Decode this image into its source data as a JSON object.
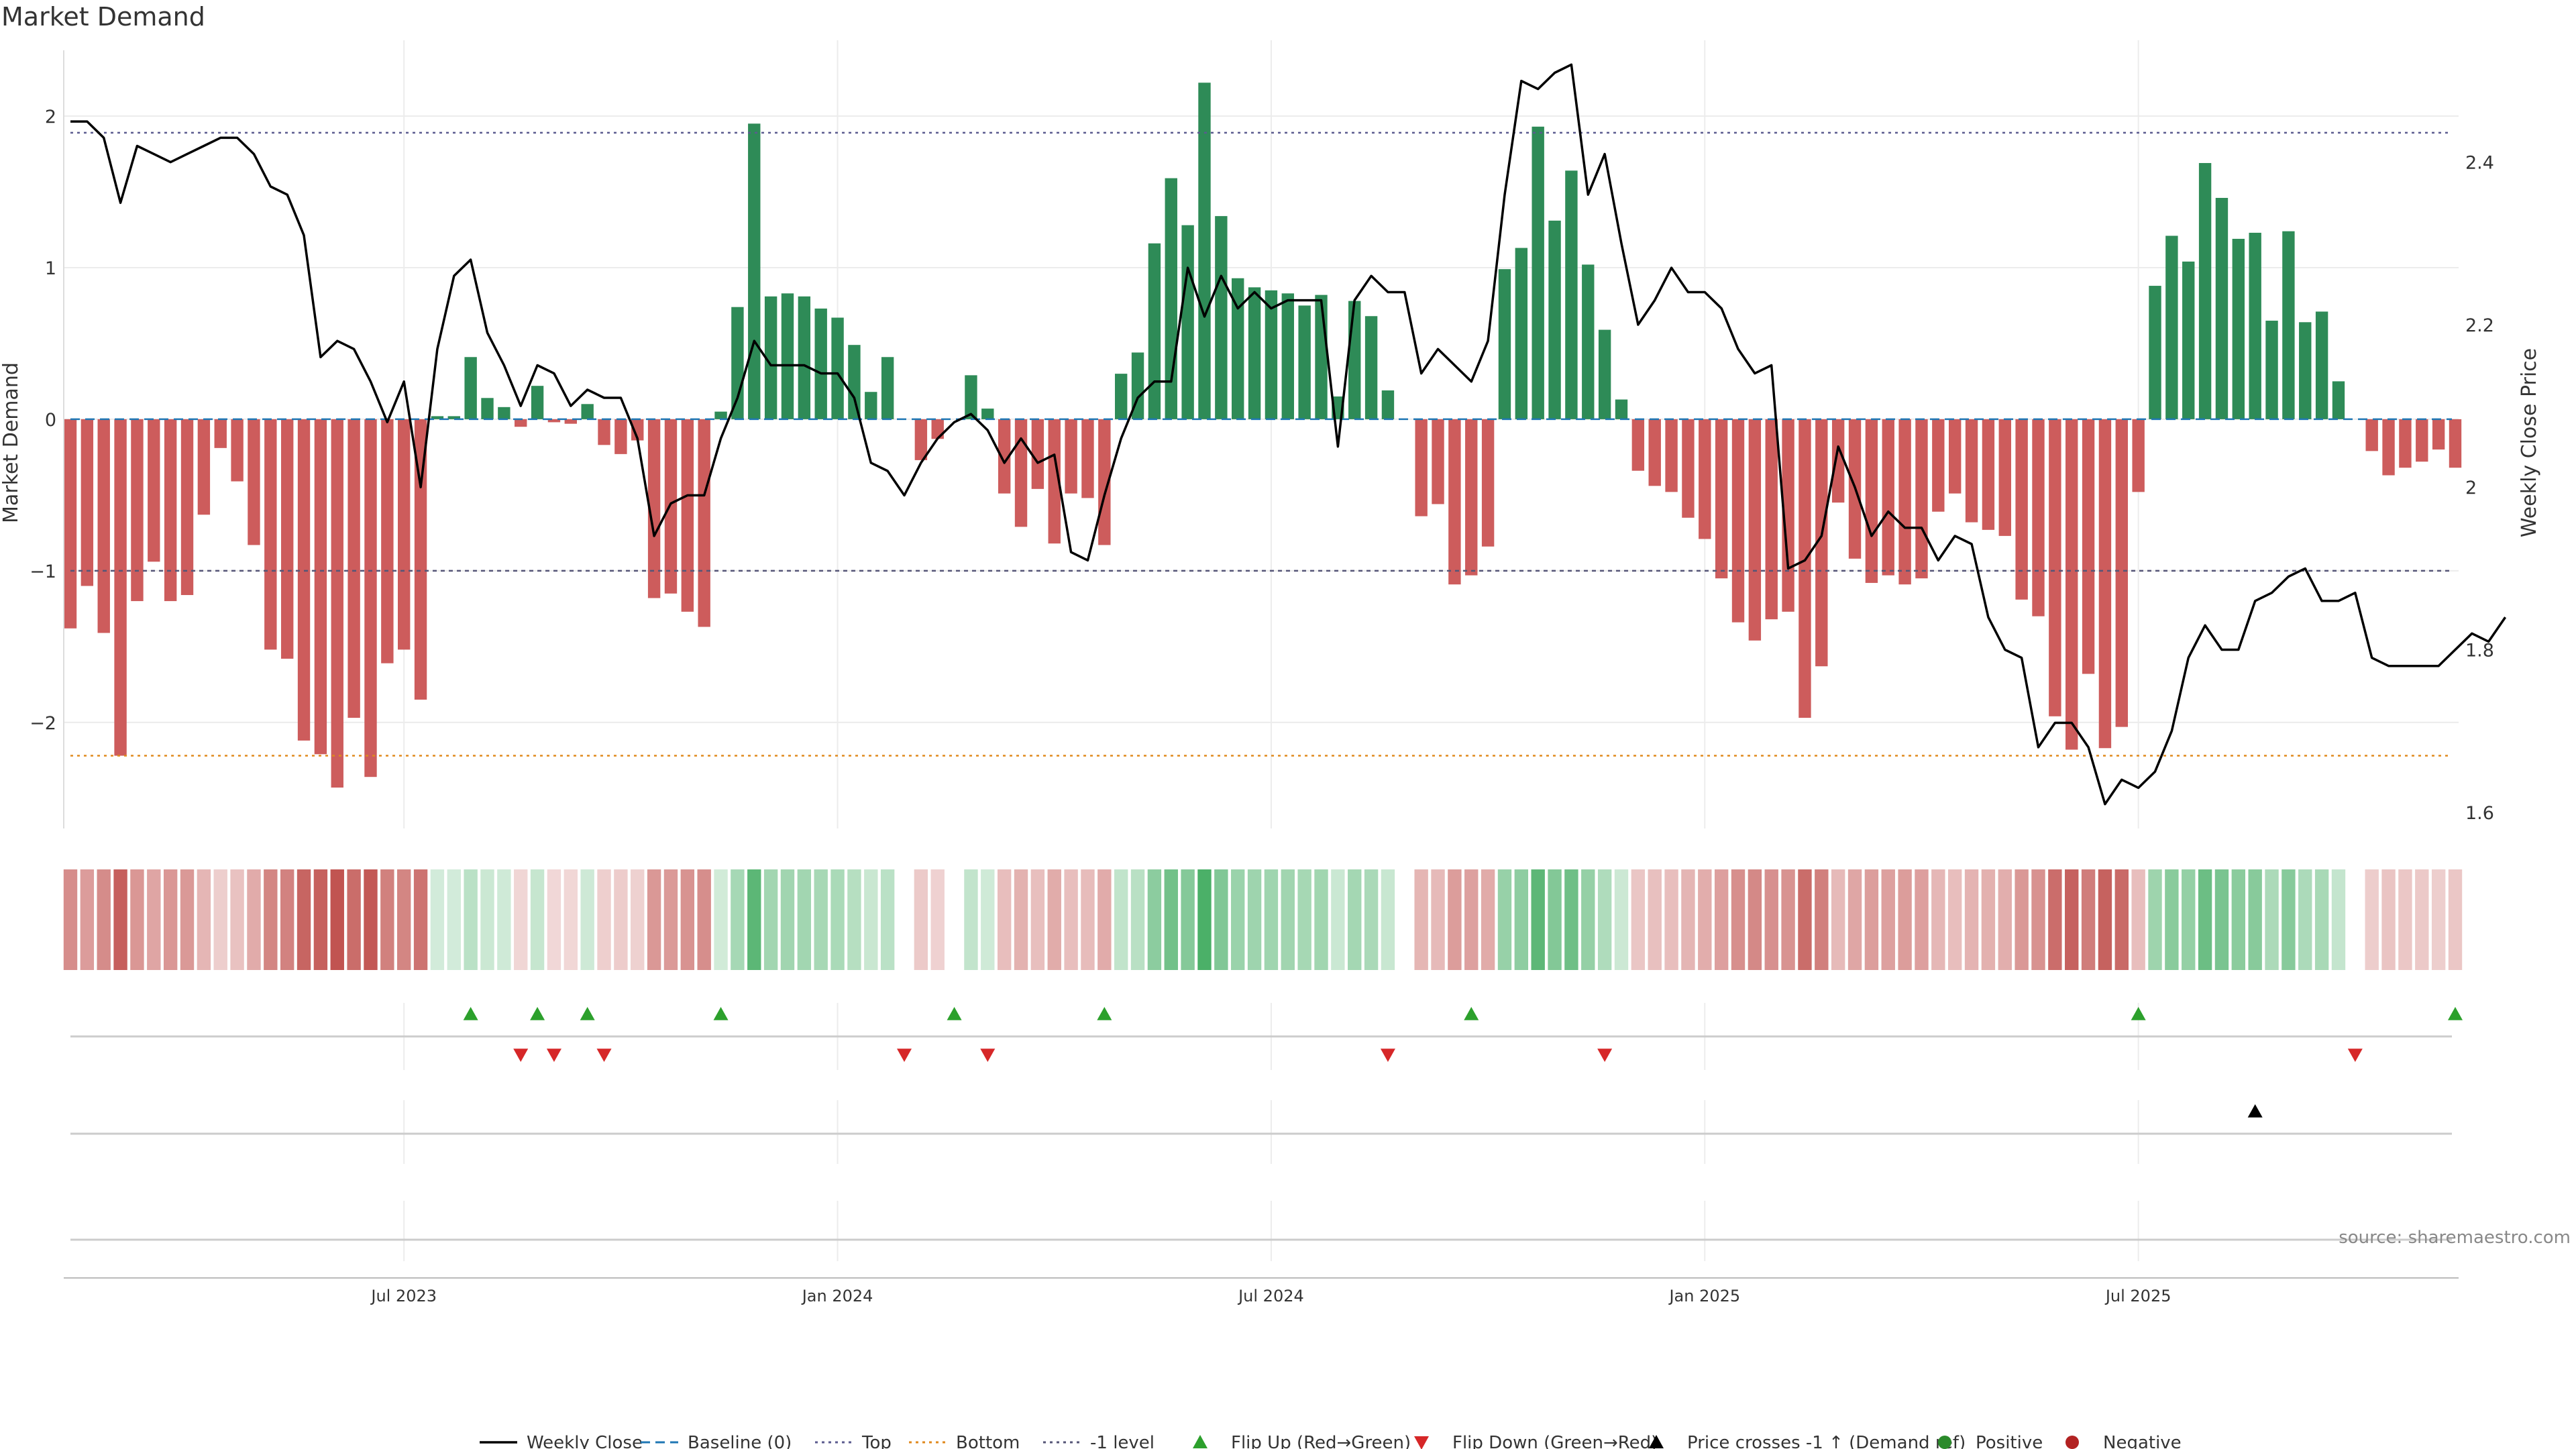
{
  "chart_data": {
    "type": "bar",
    "title": "Market Demand",
    "ylabel": "Market Demand",
    "ylabel_right": "Weekly Close Price",
    "source": "source: sharemaestro.com",
    "ylim": [
      -2.7,
      2.5
    ],
    "ylim_right": [
      1.58,
      2.55
    ],
    "yticks": [
      {
        "v": 2,
        "t": "2"
      },
      {
        "v": 1,
        "t": "1"
      },
      {
        "v": 0,
        "t": "0"
      },
      {
        "v": -1,
        "t": "−1"
      },
      {
        "v": -2,
        "t": "−2"
      }
    ],
    "yticks_right": [
      {
        "v": 2.4,
        "t": "2.4"
      },
      {
        "v": 2.2,
        "t": "2.2"
      },
      {
        "v": 2.0,
        "t": "2"
      },
      {
        "v": 1.8,
        "t": "1.8"
      },
      {
        "v": 1.6,
        "t": "1.6"
      }
    ],
    "xticks": [
      {
        "i": 20,
        "t": "Jul 2023"
      },
      {
        "i": 46,
        "t": "Jan 2024"
      },
      {
        "i": 72,
        "t": "Jul 2024"
      },
      {
        "i": 98,
        "t": "Jan 2025"
      },
      {
        "i": 124,
        "t": "Jul 2025"
      }
    ],
    "reference_lines": {
      "top": 1.89,
      "bottom": -2.22,
      "minus_one": -1,
      "baseline": 0
    },
    "demand": [
      -1.38,
      -1.1,
      -1.41,
      -2.22,
      -1.2,
      -0.94,
      -1.2,
      -1.16,
      -0.63,
      -0.19,
      -0.41,
      -0.83,
      -1.52,
      -1.58,
      -2.12,
      -2.21,
      -2.43,
      -1.97,
      -2.36,
      -1.61,
      -1.52,
      -1.85,
      0.02,
      0.02,
      0.41,
      0.14,
      0.08,
      -0.05,
      0.22,
      -0.02,
      -0.03,
      0.1,
      -0.17,
      -0.23,
      -0.14,
      -1.18,
      -1.15,
      -1.27,
      -1.37,
      0.05,
      0.74,
      1.95,
      0.81,
      0.83,
      0.81,
      0.73,
      0.67,
      0.49,
      0.18,
      0.41,
      0,
      -0.27,
      -0.13,
      0,
      0.29,
      0.07,
      -0.49,
      -0.71,
      -0.46,
      -0.82,
      -0.49,
      -0.52,
      -0.83,
      0.3,
      0.44,
      1.16,
      1.59,
      1.28,
      2.22,
      1.34,
      0.93,
      0.87,
      0.85,
      0.83,
      0.75,
      0.82,
      0.15,
      0.78,
      0.68,
      0.19,
      0,
      -0.64,
      -0.56,
      -1.09,
      -1.03,
      -0.84,
      0.99,
      1.13,
      1.93,
      1.31,
      1.64,
      1.02,
      0.59,
      0.13,
      -0.34,
      -0.44,
      -0.48,
      -0.65,
      -0.79,
      -1.05,
      -1.34,
      -1.46,
      -1.32,
      -1.27,
      -1.97,
      -1.63,
      -0.55,
      -0.92,
      -1.08,
      -1.03,
      -1.09,
      -1.05,
      -0.61,
      -0.49,
      -0.68,
      -0.73,
      -0.77,
      -1.19,
      -1.3,
      -1.96,
      -2.18,
      -1.68,
      -2.17,
      -2.03,
      -0.48,
      0.88,
      1.21,
      1.04,
      1.69,
      1.46,
      1.19,
      1.23,
      0.65,
      1.24,
      0.64,
      0.71,
      0.25,
      0,
      -0.21,
      -0.37,
      -0.32,
      -0.28,
      -0.2,
      -0.32
    ],
    "close": [
      2.45,
      2.45,
      2.43,
      2.35,
      2.42,
      2.41,
      2.4,
      2.41,
      2.42,
      2.43,
      2.43,
      2.41,
      2.37,
      2.36,
      2.31,
      2.16,
      2.18,
      2.17,
      2.13,
      2.08,
      2.13,
      2.0,
      2.17,
      2.26,
      2.28,
      2.19,
      2.15,
      2.1,
      2.15,
      2.14,
      2.1,
      2.12,
      2.11,
      2.11,
      2.06,
      1.94,
      1.98,
      1.99,
      1.99,
      2.06,
      2.11,
      2.18,
      2.15,
      2.15,
      2.15,
      2.14,
      2.14,
      2.11,
      2.03,
      2.02,
      1.99,
      2.03,
      2.06,
      2.08,
      2.09,
      2.07,
      2.03,
      2.06,
      2.03,
      2.04,
      1.92,
      1.91,
      1.99,
      2.06,
      2.11,
      2.13,
      2.13,
      2.27,
      2.21,
      2.26,
      2.22,
      2.24,
      2.22,
      2.23,
      2.23,
      2.23,
      2.05,
      2.23,
      2.26,
      2.24,
      2.24,
      2.14,
      2.17,
      2.15,
      2.13,
      2.18,
      2.36,
      2.5,
      2.49,
      2.51,
      2.52,
      2.36,
      2.41,
      2.3,
      2.2,
      2.23,
      2.27,
      2.24,
      2.24,
      2.22,
      2.17,
      2.14,
      2.15,
      1.9,
      1.91,
      1.94,
      2.05,
      2.0,
      1.94,
      1.97,
      1.95,
      1.95,
      1.91,
      1.94,
      1.93,
      1.84,
      1.8,
      1.79,
      1.68,
      1.71,
      1.71,
      1.68,
      1.61,
      1.64,
      1.63,
      1.65,
      1.7,
      1.79,
      1.83,
      1.8,
      1.8,
      1.86,
      1.87,
      1.89,
      1.9,
      1.86,
      1.86,
      1.87,
      1.79,
      1.78,
      1.78,
      1.78,
      1.78,
      1.8,
      1.82,
      1.81,
      1.84
    ],
    "flips_up": [
      24,
      28,
      31,
      39,
      53,
      62,
      84,
      124,
      143
    ],
    "flips_down": [
      27,
      29,
      32,
      50,
      55,
      79,
      92,
      137
    ],
    "price_cross_up": [
      131
    ],
    "xlabel": ""
  },
  "legend": [
    {
      "type": "line",
      "label": "Weekly Close",
      "color": "#000000"
    },
    {
      "type": "dash",
      "label": "Baseline (0)",
      "color": "#1f77b4"
    },
    {
      "type": "dot",
      "label": "Top",
      "color": "#5b5b8f"
    },
    {
      "type": "dot",
      "label": "Bottom",
      "color": "#e08a1e"
    },
    {
      "type": "dot",
      "label": "-1 level",
      "color": "#555577"
    },
    {
      "type": "tri-up",
      "label": "Flip Up (Red→Green)",
      "color": "#2ca02c"
    },
    {
      "type": "tri-down",
      "label": "Flip Down (Green→Red)",
      "color": "#d62728"
    },
    {
      "type": "tri-up",
      "label": "Price crosses -1 ↑ (Demand ref)",
      "color": "#000000"
    },
    {
      "type": "circle",
      "label": "Positive",
      "color": "#2a8a2a"
    },
    {
      "type": "circle",
      "label": "Negative",
      "color": "#b22222"
    }
  ],
  "colors": {
    "pos": "#2e8b57",
    "neg": "#cd5c5c",
    "grid": "#ececec"
  }
}
